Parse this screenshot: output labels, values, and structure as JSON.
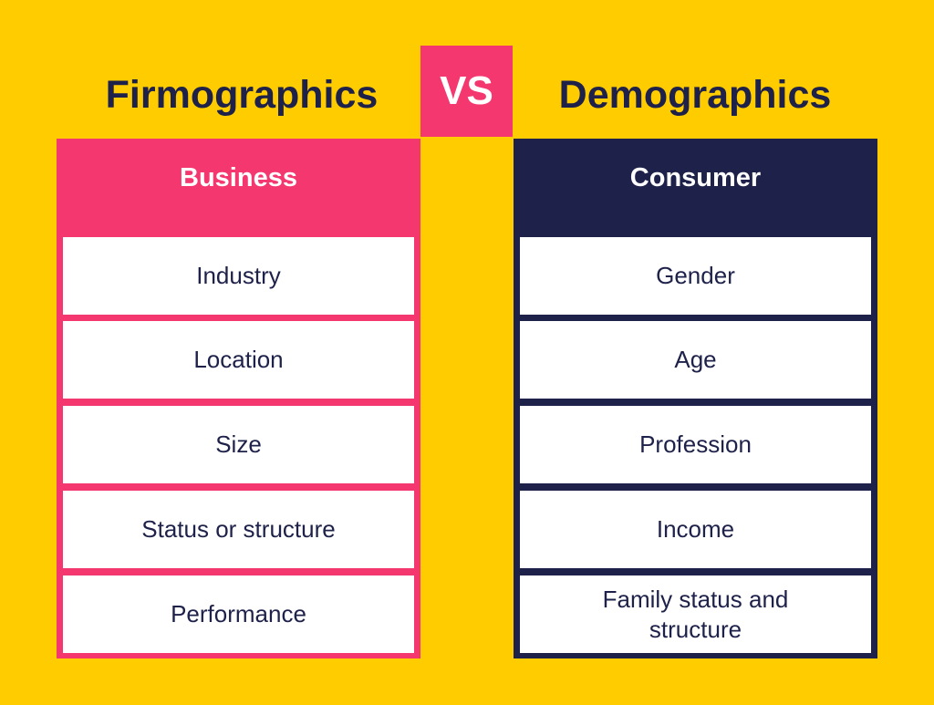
{
  "left": {
    "title": "Firmographics",
    "header": "Business",
    "items": [
      "Industry",
      "Location",
      "Size",
      "Status or structure",
      "Performance"
    ]
  },
  "vs": "VS",
  "right": {
    "title": "Demographics",
    "header": "Consumer",
    "items": [
      "Gender",
      "Age",
      "Profession",
      "Income",
      "Family status and structure"
    ]
  }
}
